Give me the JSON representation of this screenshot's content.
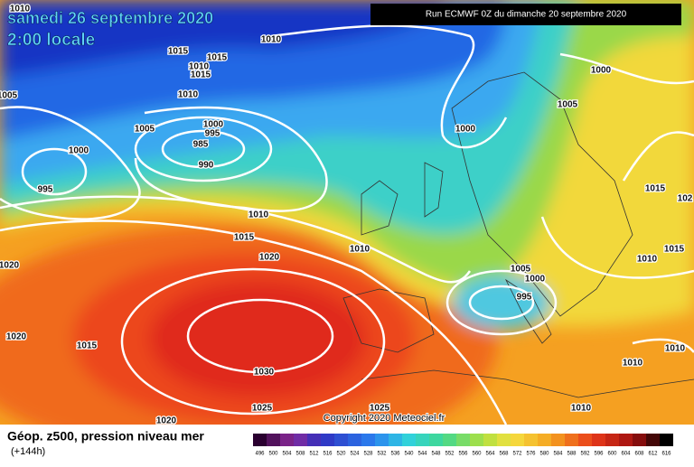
{
  "header": {
    "date": "samedi 26 septembre 2020",
    "time": "2:00 locale",
    "run": "Run ECMWF 0Z du dimanche 20 septembre 2020"
  },
  "copyright": "Copyright 2020 Meteociel.fr",
  "footer": {
    "title": "Géop. z500, pression niveau mer",
    "lead": "(+144h)"
  },
  "scale": {
    "labels": [
      496,
      500,
      504,
      508,
      512,
      516,
      520,
      524,
      528,
      532,
      536,
      540,
      544,
      548,
      552,
      556,
      560,
      564,
      568,
      572,
      576,
      580,
      584,
      588,
      592,
      596,
      600,
      604,
      608,
      612,
      616
    ]
  },
  "isobar_labels": [
    1010,
    1010,
    1015,
    1015,
    1010,
    1015,
    1010,
    1005,
    1000,
    1005,
    1005,
    1000,
    995,
    985,
    990,
    1000,
    1000,
    995,
    1010,
    1015,
    1020,
    1010,
    1020,
    1015,
    1015,
    1010,
    1005,
    1000,
    995,
    1020,
    1015,
    1030,
    1025,
    1025,
    1010,
    1010,
    1010,
    1020,
    102
  ]
}
